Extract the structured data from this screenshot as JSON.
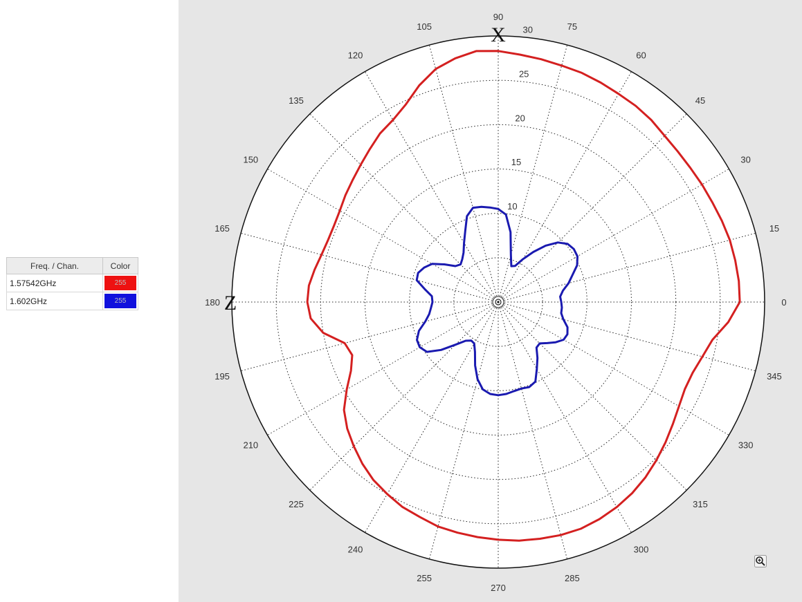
{
  "legend": {
    "headers": [
      "Freq. / Chan.",
      "Color"
    ],
    "rows": [
      {
        "freq": "1.57542GHz",
        "color": "#ee1111",
        "swatch_text": "255"
      },
      {
        "freq": "1.602GHz",
        "color": "#1111dd",
        "swatch_text": "255"
      }
    ]
  },
  "icons": {
    "zoom": "zoom-in-icon"
  },
  "chart_data": {
    "type": "polar-line",
    "axis_letters": {
      "top": "X",
      "left": "Z"
    },
    "angular_ticks": [
      0,
      15,
      30,
      45,
      60,
      75,
      90,
      105,
      120,
      135,
      150,
      165,
      180,
      195,
      210,
      225,
      240,
      255,
      270,
      285,
      300,
      315,
      330,
      345
    ],
    "radial_ticks": [
      10,
      15,
      20,
      25,
      30
    ],
    "rlim": [
      0,
      30
    ],
    "grid": true,
    "legend_placement": "left",
    "series": [
      {
        "name": "1.57542GHz",
        "color": "#d42020",
        "points": [
          [
            0,
            27.2
          ],
          [
            5,
            27.2
          ],
          [
            10,
            27.1
          ],
          [
            15,
            27.0
          ],
          [
            20,
            26.8
          ],
          [
            25,
            26.6
          ],
          [
            30,
            26.5
          ],
          [
            35,
            26.4
          ],
          [
            40,
            26.4
          ],
          [
            45,
            26.5
          ],
          [
            50,
            26.8
          ],
          [
            55,
            27.0
          ],
          [
            60,
            27.1
          ],
          [
            65,
            27.3
          ],
          [
            70,
            27.5
          ],
          [
            75,
            27.6
          ],
          [
            80,
            27.8
          ],
          [
            85,
            28.0
          ],
          [
            90,
            28.3
          ],
          [
            95,
            28.4
          ],
          [
            100,
            27.9
          ],
          [
            105,
            27.2
          ],
          [
            110,
            26.0
          ],
          [
            115,
            24.6
          ],
          [
            120,
            23.7
          ],
          [
            125,
            23.2
          ],
          [
            130,
            22.5
          ],
          [
            135,
            21.9
          ],
          [
            140,
            21.4
          ],
          [
            145,
            21.0
          ],
          [
            150,
            20.6
          ],
          [
            155,
            20.4
          ],
          [
            160,
            20.4
          ],
          [
            165,
            20.6
          ],
          [
            170,
            21.0
          ],
          [
            175,
            21.4
          ],
          [
            180,
            21.5
          ],
          [
            185,
            21.2
          ],
          [
            190,
            20.0
          ],
          [
            195,
            17.9
          ],
          [
            200,
            17.5
          ],
          [
            205,
            18.3
          ],
          [
            210,
            19.7
          ],
          [
            215,
            21.2
          ],
          [
            220,
            22.2
          ],
          [
            225,
            23.0
          ],
          [
            230,
            23.8
          ],
          [
            235,
            24.5
          ],
          [
            240,
            25.0
          ],
          [
            245,
            25.5
          ],
          [
            250,
            25.8
          ],
          [
            255,
            26.2
          ],
          [
            260,
            26.4
          ],
          [
            265,
            26.6
          ],
          [
            270,
            26.8
          ],
          [
            275,
            27.0
          ],
          [
            280,
            27.1
          ],
          [
            285,
            27.2
          ],
          [
            290,
            27.2
          ],
          [
            295,
            27.0
          ],
          [
            300,
            26.7
          ],
          [
            305,
            26.3
          ],
          [
            310,
            25.8
          ],
          [
            315,
            25.2
          ],
          [
            320,
            24.6
          ],
          [
            325,
            24.0
          ],
          [
            330,
            23.5
          ],
          [
            335,
            23.2
          ],
          [
            340,
            23.3
          ],
          [
            345,
            23.8
          ],
          [
            350,
            24.5
          ],
          [
            355,
            26.0
          ]
        ]
      },
      {
        "name": "1.602GHz",
        "color": "#1a1ab0",
        "points": [
          [
            0,
            7.1
          ],
          [
            5,
            7.0
          ],
          [
            10,
            7.4
          ],
          [
            15,
            8.2
          ],
          [
            20,
            8.9
          ],
          [
            25,
            9.8
          ],
          [
            30,
            10.3
          ],
          [
            35,
            10.4
          ],
          [
            40,
            10.2
          ],
          [
            45,
            9.5
          ],
          [
            50,
            8.3
          ],
          [
            55,
            6.9
          ],
          [
            60,
            5.6
          ],
          [
            65,
            4.5
          ],
          [
            70,
            4.3
          ],
          [
            75,
            5.5
          ],
          [
            80,
            8.0
          ],
          [
            85,
            9.9
          ],
          [
            90,
            10.5
          ],
          [
            95,
            10.7
          ],
          [
            100,
            10.9
          ],
          [
            105,
            11.0
          ],
          [
            110,
            10.3
          ],
          [
            115,
            8.8
          ],
          [
            120,
            7.7
          ],
          [
            125,
            6.8
          ],
          [
            130,
            6.3
          ],
          [
            135,
            6.0
          ],
          [
            140,
            6.3
          ],
          [
            145,
            7.4
          ],
          [
            150,
            8.6
          ],
          [
            155,
            9.2
          ],
          [
            160,
            9.6
          ],
          [
            165,
            9.5
          ],
          [
            170,
            8.4
          ],
          [
            175,
            7.5
          ],
          [
            180,
            7.4
          ],
          [
            185,
            7.6
          ],
          [
            190,
            7.9
          ],
          [
            195,
            8.5
          ],
          [
            200,
            9.5
          ],
          [
            205,
            10.1
          ],
          [
            210,
            10.2
          ],
          [
            215,
            9.8
          ],
          [
            220,
            8.4
          ],
          [
            225,
            6.8
          ],
          [
            230,
            5.7
          ],
          [
            235,
            5.3
          ],
          [
            240,
            5.4
          ],
          [
            245,
            6.2
          ],
          [
            250,
            7.6
          ],
          [
            255,
            9.0
          ],
          [
            260,
            10.0
          ],
          [
            265,
            10.4
          ],
          [
            270,
            10.5
          ],
          [
            275,
            10.4
          ],
          [
            280,
            10.2
          ],
          [
            285,
            10.1
          ],
          [
            290,
            10.2
          ],
          [
            295,
            9.9
          ],
          [
            300,
            8.7
          ],
          [
            305,
            7.7
          ],
          [
            310,
            6.7
          ],
          [
            315,
            6.6
          ],
          [
            320,
            7.2
          ],
          [
            325,
            7.9
          ],
          [
            330,
            8.5
          ],
          [
            335,
            8.6
          ],
          [
            340,
            8.3
          ],
          [
            345,
            7.6
          ],
          [
            350,
            7.2
          ],
          [
            355,
            7.2
          ]
        ]
      }
    ]
  }
}
